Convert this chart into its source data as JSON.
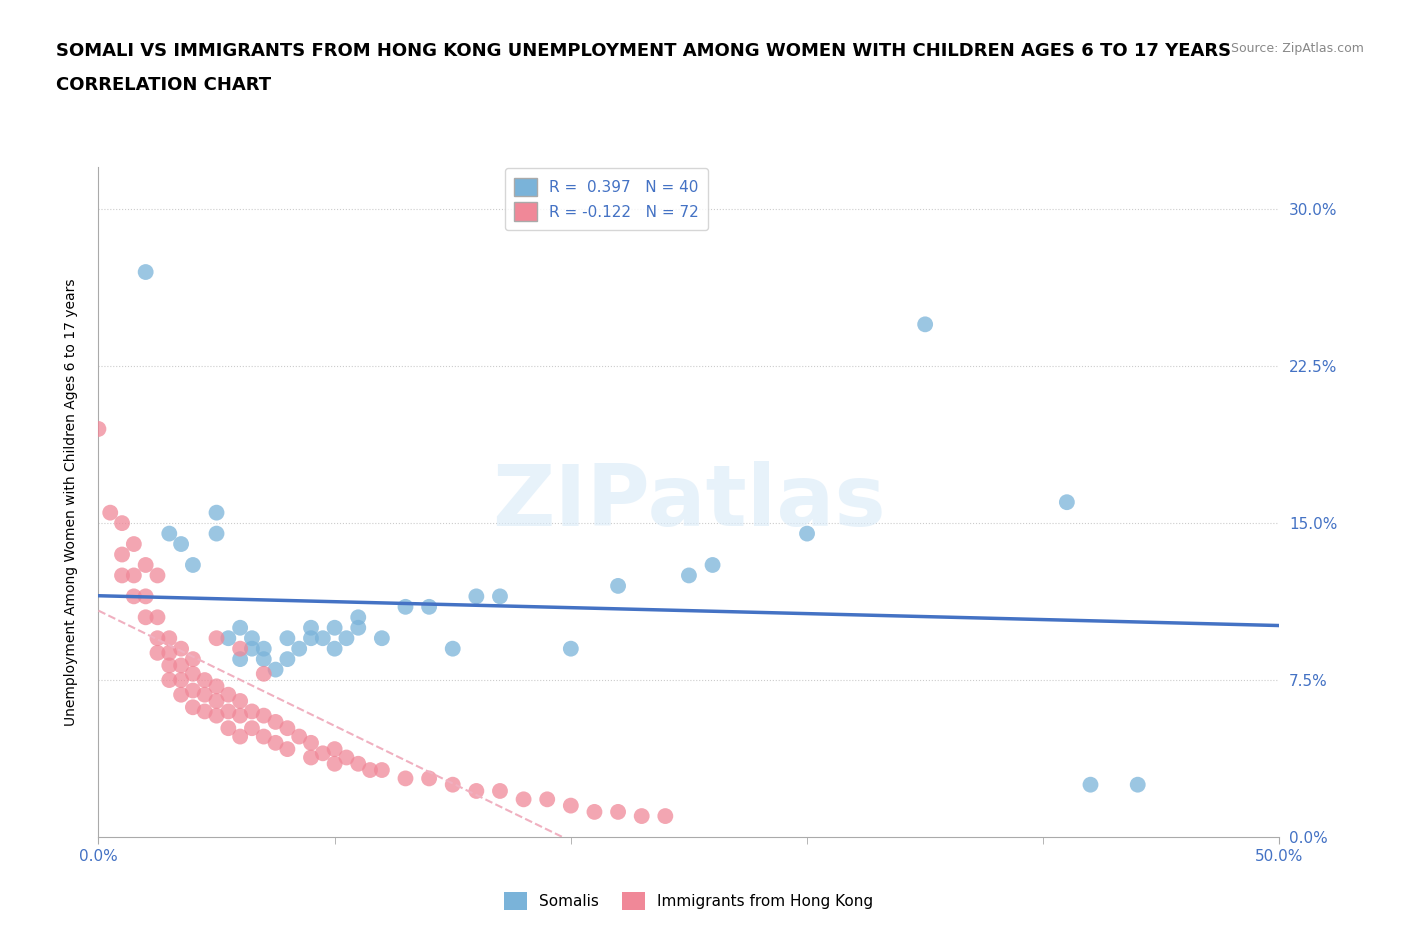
{
  "title_line1": "SOMALI VS IMMIGRANTS FROM HONG KONG UNEMPLOYMENT AMONG WOMEN WITH CHILDREN AGES 6 TO 17 YEARS",
  "title_line2": "CORRELATION CHART",
  "source": "Source: ZipAtlas.com",
  "ylabel": "Unemployment Among Women with Children Ages 6 to 17 years",
  "xlim": [
    0.0,
    0.5
  ],
  "ylim": [
    0.0,
    0.32
  ],
  "yticks": [
    0.0,
    0.075,
    0.15,
    0.225,
    0.3
  ],
  "xticks": [
    0.0,
    0.5
  ],
  "extra_xticks": [
    0.1,
    0.2,
    0.3,
    0.4
  ],
  "watermark": "ZIPatlas",
  "legend_entries": [
    {
      "label": "R =  0.397   N = 40",
      "color": "#aec6e8"
    },
    {
      "label": "R = -0.122   N = 72",
      "color": "#f4a7b9"
    }
  ],
  "legend_labels": [
    "Somalis",
    "Immigrants from Hong Kong"
  ],
  "somali_color": "#7ab3d9",
  "hk_color": "#f08898",
  "trend_somali_color": "#4472c4",
  "trend_hk_color": "#f0b0c0",
  "somali_points": [
    [
      0.02,
      0.27
    ],
    [
      0.03,
      0.145
    ],
    [
      0.035,
      0.14
    ],
    [
      0.04,
      0.13
    ],
    [
      0.05,
      0.155
    ],
    [
      0.05,
      0.145
    ],
    [
      0.055,
      0.095
    ],
    [
      0.06,
      0.085
    ],
    [
      0.06,
      0.1
    ],
    [
      0.065,
      0.095
    ],
    [
      0.065,
      0.09
    ],
    [
      0.07,
      0.09
    ],
    [
      0.07,
      0.085
    ],
    [
      0.075,
      0.08
    ],
    [
      0.08,
      0.095
    ],
    [
      0.08,
      0.085
    ],
    [
      0.085,
      0.09
    ],
    [
      0.09,
      0.095
    ],
    [
      0.09,
      0.1
    ],
    [
      0.095,
      0.095
    ],
    [
      0.1,
      0.1
    ],
    [
      0.1,
      0.09
    ],
    [
      0.105,
      0.095
    ],
    [
      0.11,
      0.105
    ],
    [
      0.11,
      0.1
    ],
    [
      0.12,
      0.095
    ],
    [
      0.13,
      0.11
    ],
    [
      0.14,
      0.11
    ],
    [
      0.15,
      0.09
    ],
    [
      0.16,
      0.115
    ],
    [
      0.17,
      0.115
    ],
    [
      0.2,
      0.09
    ],
    [
      0.22,
      0.12
    ],
    [
      0.25,
      0.125
    ],
    [
      0.26,
      0.13
    ],
    [
      0.3,
      0.145
    ],
    [
      0.35,
      0.245
    ],
    [
      0.41,
      0.16
    ],
    [
      0.42,
      0.025
    ],
    [
      0.44,
      0.025
    ]
  ],
  "hk_points": [
    [
      0.0,
      0.195
    ],
    [
      0.005,
      0.155
    ],
    [
      0.01,
      0.15
    ],
    [
      0.01,
      0.135
    ],
    [
      0.01,
      0.125
    ],
    [
      0.015,
      0.14
    ],
    [
      0.015,
      0.125
    ],
    [
      0.015,
      0.115
    ],
    [
      0.02,
      0.13
    ],
    [
      0.02,
      0.115
    ],
    [
      0.02,
      0.105
    ],
    [
      0.025,
      0.125
    ],
    [
      0.025,
      0.105
    ],
    [
      0.025,
      0.095
    ],
    [
      0.025,
      0.088
    ],
    [
      0.03,
      0.095
    ],
    [
      0.03,
      0.088
    ],
    [
      0.03,
      0.082
    ],
    [
      0.03,
      0.075
    ],
    [
      0.035,
      0.09
    ],
    [
      0.035,
      0.082
    ],
    [
      0.035,
      0.075
    ],
    [
      0.035,
      0.068
    ],
    [
      0.04,
      0.085
    ],
    [
      0.04,
      0.078
    ],
    [
      0.04,
      0.07
    ],
    [
      0.04,
      0.062
    ],
    [
      0.045,
      0.075
    ],
    [
      0.045,
      0.068
    ],
    [
      0.045,
      0.06
    ],
    [
      0.05,
      0.072
    ],
    [
      0.05,
      0.065
    ],
    [
      0.05,
      0.058
    ],
    [
      0.055,
      0.068
    ],
    [
      0.055,
      0.06
    ],
    [
      0.055,
      0.052
    ],
    [
      0.06,
      0.065
    ],
    [
      0.06,
      0.058
    ],
    [
      0.06,
      0.048
    ],
    [
      0.065,
      0.06
    ],
    [
      0.065,
      0.052
    ],
    [
      0.07,
      0.058
    ],
    [
      0.07,
      0.048
    ],
    [
      0.075,
      0.055
    ],
    [
      0.075,
      0.045
    ],
    [
      0.08,
      0.052
    ],
    [
      0.08,
      0.042
    ],
    [
      0.085,
      0.048
    ],
    [
      0.09,
      0.045
    ],
    [
      0.09,
      0.038
    ],
    [
      0.095,
      0.04
    ],
    [
      0.1,
      0.042
    ],
    [
      0.1,
      0.035
    ],
    [
      0.105,
      0.038
    ],
    [
      0.11,
      0.035
    ],
    [
      0.115,
      0.032
    ],
    [
      0.12,
      0.032
    ],
    [
      0.13,
      0.028
    ],
    [
      0.14,
      0.028
    ],
    [
      0.15,
      0.025
    ],
    [
      0.16,
      0.022
    ],
    [
      0.17,
      0.022
    ],
    [
      0.18,
      0.018
    ],
    [
      0.19,
      0.018
    ],
    [
      0.2,
      0.015
    ],
    [
      0.21,
      0.012
    ],
    [
      0.22,
      0.012
    ],
    [
      0.23,
      0.01
    ],
    [
      0.24,
      0.01
    ],
    [
      0.05,
      0.095
    ],
    [
      0.06,
      0.09
    ],
    [
      0.07,
      0.078
    ]
  ],
  "grid_color": "#cccccc",
  "background_color": "#ffffff",
  "title_fontsize": 13,
  "axis_label_fontsize": 10,
  "tick_fontsize": 11,
  "tick_color": "#4472c4",
  "source_color": "#888888",
  "legend_fontsize": 11,
  "watermark_color": "#d8eaf8",
  "watermark_fontsize": 62
}
